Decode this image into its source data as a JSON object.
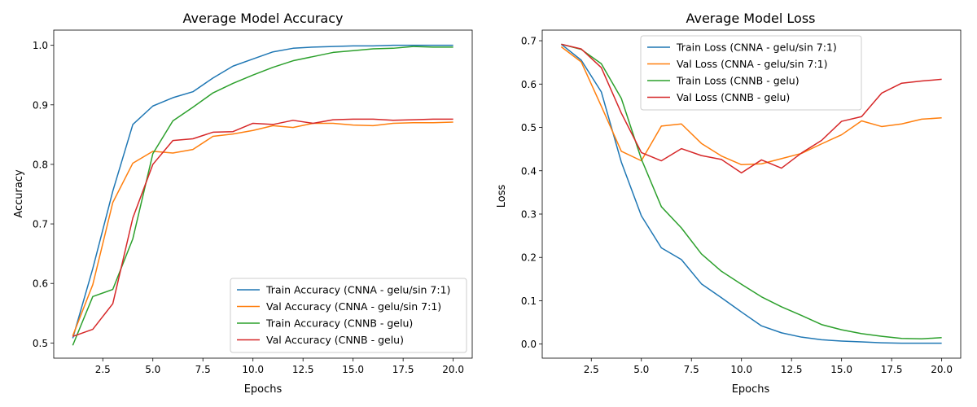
{
  "chart_data": [
    {
      "type": "line",
      "title": "Average Model Accuracy",
      "xlabel": "Epochs",
      "ylabel": "Accuracy",
      "xlim": [
        0.05,
        20.95
      ],
      "ylim": [
        0.4745,
        1.0255
      ],
      "xticks": [
        2.5,
        5.0,
        7.5,
        10.0,
        12.5,
        15.0,
        17.5,
        20.0
      ],
      "xtick_labels": [
        "2.5",
        "5.0",
        "7.5",
        "10.0",
        "12.5",
        "15.0",
        "17.5",
        "20.0"
      ],
      "yticks": [
        0.5,
        0.6,
        0.7,
        0.8,
        0.9,
        1.0
      ],
      "ytick_labels": [
        "0.5",
        "0.6",
        "0.7",
        "0.8",
        "0.9",
        "1.0"
      ],
      "legend_position": "lower-right",
      "x": [
        1,
        2,
        3,
        4,
        5,
        6,
        7,
        8,
        9,
        10,
        11,
        12,
        13,
        14,
        15,
        16,
        17,
        18,
        19,
        20
      ],
      "series": [
        {
          "name": "Train Accuracy (CNNA - gelu/sin 7:1)",
          "color": "#1f77b4",
          "values": [
            0.508,
            0.625,
            0.755,
            0.867,
            0.898,
            0.912,
            0.922,
            0.945,
            0.965,
            0.977,
            0.989,
            0.995,
            0.997,
            0.998,
            0.999,
            0.999,
            1.0,
            1.0,
            1.0,
            1.0
          ]
        },
        {
          "name": "Val Accuracy (CNNA - gelu/sin 7:1)",
          "color": "#ff7f0e",
          "values": [
            0.512,
            0.598,
            0.736,
            0.802,
            0.822,
            0.819,
            0.825,
            0.847,
            0.851,
            0.857,
            0.865,
            0.862,
            0.869,
            0.869,
            0.866,
            0.865,
            0.869,
            0.87,
            0.87,
            0.871
          ]
        },
        {
          "name": "Train Accuracy (CNNB - gelu)",
          "color": "#2ca02c",
          "values": [
            0.496,
            0.578,
            0.59,
            0.675,
            0.818,
            0.873,
            0.896,
            0.92,
            0.936,
            0.95,
            0.963,
            0.974,
            0.981,
            0.988,
            0.991,
            0.994,
            0.995,
            0.998,
            0.997,
            0.997
          ]
        },
        {
          "name": "Val Accuracy (CNNB - gelu)",
          "color": "#d62728",
          "values": [
            0.511,
            0.523,
            0.566,
            0.71,
            0.8,
            0.84,
            0.843,
            0.854,
            0.855,
            0.869,
            0.867,
            0.874,
            0.869,
            0.875,
            0.876,
            0.876,
            0.874,
            0.875,
            0.876,
            0.876
          ]
        }
      ]
    },
    {
      "type": "line",
      "title": "Average Model Loss",
      "xlabel": "Epochs",
      "ylabel": "Loss",
      "xlim": [
        0.05,
        20.95
      ],
      "ylim": [
        -0.0325,
        0.7245
      ],
      "xticks": [
        2.5,
        5.0,
        7.5,
        10.0,
        12.5,
        15.0,
        17.5,
        20.0
      ],
      "xtick_labels": [
        "2.5",
        "5.0",
        "7.5",
        "10.0",
        "12.5",
        "15.0",
        "17.5",
        "20.0"
      ],
      "yticks": [
        0.0,
        0.1,
        0.2,
        0.3,
        0.4,
        0.5,
        0.6,
        0.7
      ],
      "ytick_labels": [
        "0.0",
        "0.1",
        "0.2",
        "0.3",
        "0.4",
        "0.5",
        "0.6",
        "0.7"
      ],
      "legend_position": "upper-center",
      "x": [
        1,
        2,
        3,
        4,
        5,
        6,
        7,
        8,
        9,
        10,
        11,
        12,
        13,
        14,
        15,
        16,
        17,
        18,
        19,
        20
      ],
      "series": [
        {
          "name": "Train Loss (CNNA - gelu/sin 7:1)",
          "color": "#1f77b4",
          "values": [
            0.692,
            0.655,
            0.582,
            0.42,
            0.296,
            0.222,
            0.195,
            0.139,
            0.107,
            0.074,
            0.042,
            0.026,
            0.016,
            0.01,
            0.007,
            0.005,
            0.003,
            0.002,
            0.002,
            0.002
          ]
        },
        {
          "name": "Val Loss (CNNA - gelu/sin 7:1)",
          "color": "#ff7f0e",
          "values": [
            0.686,
            0.651,
            0.549,
            0.445,
            0.423,
            0.503,
            0.508,
            0.463,
            0.434,
            0.414,
            0.416,
            0.428,
            0.44,
            0.462,
            0.483,
            0.515,
            0.502,
            0.508,
            0.519,
            0.522
          ]
        },
        {
          "name": "Train Loss (CNNB - gelu)",
          "color": "#2ca02c",
          "values": [
            0.692,
            0.68,
            0.647,
            0.567,
            0.427,
            0.317,
            0.268,
            0.208,
            0.168,
            0.138,
            0.109,
            0.086,
            0.066,
            0.045,
            0.033,
            0.024,
            0.018,
            0.013,
            0.012,
            0.015
          ]
        },
        {
          "name": "Val Loss (CNNB - gelu)",
          "color": "#d62728",
          "values": [
            0.692,
            0.681,
            0.638,
            0.533,
            0.442,
            0.423,
            0.451,
            0.435,
            0.426,
            0.395,
            0.425,
            0.406,
            0.441,
            0.47,
            0.514,
            0.525,
            0.579,
            0.602,
            0.607,
            0.611
          ]
        }
      ]
    }
  ]
}
